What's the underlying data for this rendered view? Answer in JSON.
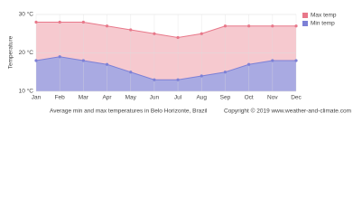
{
  "chart_data": {
    "type": "area",
    "y_label": "Temperature",
    "caption": "Average min and max temperatures in Belo Horizonte, Brazil",
    "copyright": "Copyright © 2019 www.weather-and-climate.com",
    "categories": [
      "Jan",
      "Feb",
      "Mar",
      "Apr",
      "May",
      "Jun",
      "Jul",
      "Aug",
      "Sep",
      "Oct",
      "Nov",
      "Dec"
    ],
    "series": [
      {
        "name": "Max temp",
        "color": "#e8788a",
        "fill": "#f6c9cf",
        "values": [
          28,
          28,
          28,
          27,
          26,
          25,
          24,
          25,
          27,
          27,
          27,
          27
        ]
      },
      {
        "name": "Min temp",
        "color": "#7d80d6",
        "fill": "#a9aae2",
        "values": [
          18,
          19,
          18,
          17,
          15,
          13,
          13,
          14,
          15,
          17,
          18,
          18
        ]
      }
    ],
    "ylim": [
      10,
      30
    ],
    "yticks": [
      {
        "value": 10,
        "label": "10 °C"
      },
      {
        "value": 20,
        "label": "20 °C"
      },
      {
        "value": 30,
        "label": "30 °C"
      }
    ],
    "grid": true,
    "legend": "top-right"
  }
}
